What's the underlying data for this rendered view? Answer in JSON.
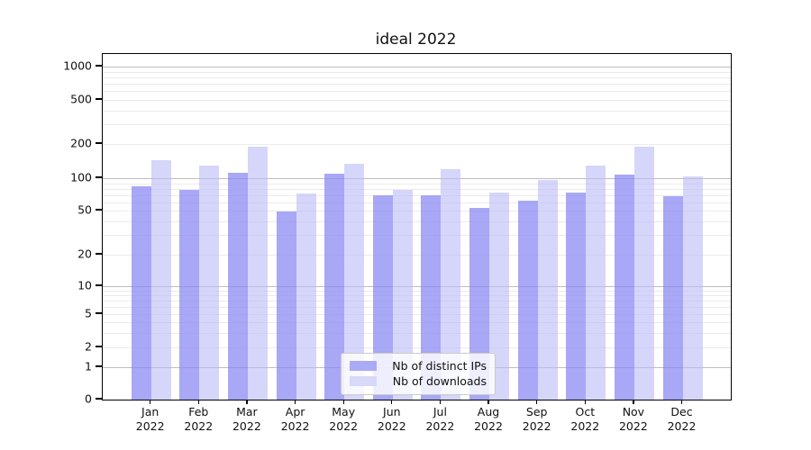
{
  "title": "ideal 2022",
  "chart_data": {
    "type": "bar",
    "title": "ideal 2022",
    "categories": [
      "Jan 2022",
      "Feb 2022",
      "Mar 2022",
      "Apr 2022",
      "May 2022",
      "Jun 2022",
      "Jul 2022",
      "Aug 2022",
      "Sep 2022",
      "Oct 2022",
      "Nov 2022",
      "Dec 2022"
    ],
    "x_tick_month_labels": [
      "Jan",
      "Feb",
      "Mar",
      "Apr",
      "May",
      "Jun",
      "Jul",
      "Aug",
      "Sep",
      "Oct",
      "Nov",
      "Dec"
    ],
    "x_tick_year_label": "2022",
    "series": [
      {
        "name": "Nb of distinct IPs",
        "color": "rgba(134,134,242,0.72)",
        "legend_color": "#aaaaf6",
        "values": [
          84,
          78,
          112,
          49,
          110,
          69,
          69,
          53,
          62,
          73,
          108,
          68
        ]
      },
      {
        "name": "Nb of downloads",
        "color": "rgba(187,187,247,0.60)",
        "legend_color": "#d8d8f9",
        "values": [
          143,
          129,
          188,
          72,
          133,
          78,
          120,
          74,
          97,
          130,
          188,
          104
        ]
      }
    ],
    "y_scale": "symlog",
    "y_ticks": [
      0,
      1,
      2,
      5,
      10,
      20,
      50,
      100,
      200,
      500,
      1000
    ],
    "y_tick_labels": [
      "0",
      "1",
      "2",
      "5",
      "10",
      "20",
      "50",
      "100",
      "200",
      "500",
      "1000"
    ],
    "y_minor_gridlines": [
      2,
      3,
      4,
      5,
      6,
      7,
      8,
      9,
      20,
      30,
      40,
      50,
      60,
      70,
      80,
      90,
      200,
      300,
      400,
      500,
      600,
      700,
      800,
      900
    ],
    "y_major_gridlines": [
      1,
      10,
      100,
      1000
    ],
    "grid": true,
    "legend_position": "lower center"
  },
  "colors": {
    "grid_major": "#bdbdbd",
    "grid_minor": "#ebebeb",
    "spine": "#000000",
    "background": "#ffffff"
  }
}
